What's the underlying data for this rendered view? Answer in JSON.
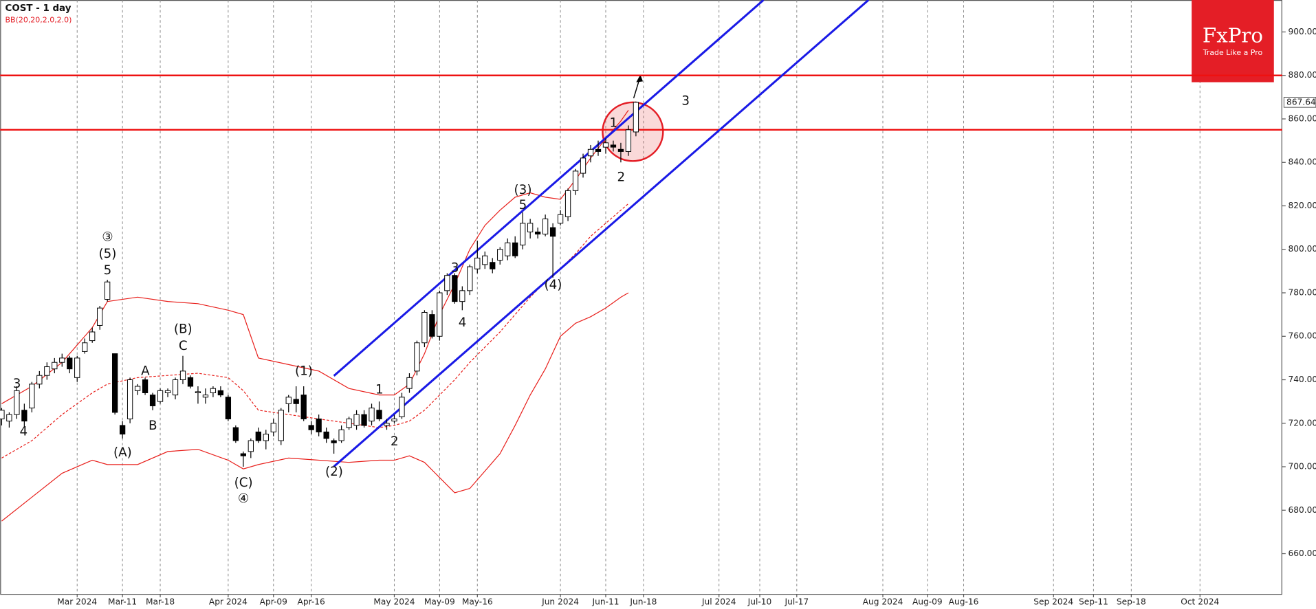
{
  "chart_data": {
    "type": "candlestick",
    "title": "COST - 1 day",
    "subtitle": "BB(20,20,2.0,2.0)",
    "logo": {
      "name": "FxPro",
      "tagline": "Trade Like a Pro"
    },
    "x": [
      -10,
      -9,
      -8,
      -7,
      -6,
      -5,
      -4,
      -3,
      -2,
      -1,
      0,
      1,
      2,
      3,
      4,
      5,
      6,
      7,
      8,
      9,
      10,
      11,
      12,
      13,
      14,
      15,
      16,
      17,
      18,
      19,
      20,
      21,
      22,
      23,
      24,
      25,
      26,
      27,
      28,
      29,
      30,
      31,
      32,
      33,
      34,
      35,
      36,
      37,
      38,
      39,
      40,
      41,
      42,
      43,
      44,
      45,
      46,
      47,
      48,
      49,
      50,
      51,
      52,
      53,
      54,
      55,
      56,
      57,
      58,
      59,
      60,
      61,
      62,
      63,
      64,
      65,
      66,
      67,
      68,
      69,
      70,
      71,
      72,
      73,
      74
    ],
    "open": [
      722,
      721,
      724,
      726,
      727,
      738,
      742,
      745,
      748,
      750,
      741,
      753,
      758,
      765,
      777,
      752,
      719,
      722,
      735,
      740,
      733,
      730,
      734,
      733,
      740,
      741,
      734,
      732,
      734,
      735,
      732,
      718,
      706,
      707,
      716,
      712,
      716,
      712,
      729,
      731,
      733,
      719,
      722,
      716,
      712,
      712,
      718,
      719,
      724,
      721,
      726,
      719,
      721,
      723,
      736,
      744,
      757,
      770,
      760,
      781,
      788,
      776,
      781,
      791,
      793,
      794,
      795,
      797,
      803,
      802,
      808,
      808,
      807,
      810,
      812,
      815,
      827,
      835,
      843,
      846,
      847,
      848,
      846,
      845,
      854
    ],
    "high": [
      727,
      725,
      737,
      729,
      739,
      744,
      748,
      750,
      752,
      751,
      751,
      759,
      764,
      774,
      786,
      752,
      721,
      741,
      738,
      741,
      734,
      736,
      736,
      741,
      751,
      742,
      737,
      736,
      737,
      737,
      733,
      719,
      707,
      713,
      718,
      717,
      722,
      727,
      733,
      737,
      737,
      721,
      724,
      718,
      713,
      719,
      723,
      726,
      726,
      729,
      730,
      722,
      724,
      734,
      743,
      758,
      772,
      772,
      781,
      789,
      789,
      783,
      793,
      804,
      799,
      796,
      801,
      805,
      806,
      817,
      814,
      810,
      816,
      812,
      818,
      828,
      837,
      844,
      848,
      850,
      851,
      850,
      849,
      857,
      868
    ],
    "low": [
      719,
      718,
      722,
      718,
      725,
      736,
      740,
      743,
      746,
      743,
      739,
      752,
      757,
      763,
      776,
      724,
      713,
      720,
      733,
      733,
      726,
      729,
      732,
      731,
      738,
      736,
      729,
      729,
      732,
      732,
      721,
      711,
      700,
      704,
      711,
      708,
      714,
      710,
      725,
      725,
      721,
      715,
      714,
      711,
      706,
      711,
      717,
      717,
      718,
      719,
      721,
      717,
      720,
      722,
      734,
      742,
      755,
      759,
      758,
      779,
      775,
      772,
      779,
      789,
      791,
      789,
      793,
      795,
      796,
      800,
      805,
      805,
      806,
      787,
      811,
      813,
      825,
      833,
      840,
      843,
      844,
      845,
      840,
      843,
      852
    ],
    "close": [
      726,
      724,
      735,
      721,
      738,
      742,
      746,
      748,
      750,
      745,
      750,
      757,
      762,
      773,
      785,
      725,
      715,
      740,
      737,
      734,
      728,
      735,
      735,
      740,
      744,
      737,
      734.5,
      733,
      736,
      733,
      722,
      712,
      705,
      712,
      712,
      715,
      720,
      726,
      732,
      729,
      722,
      717,
      716,
      713,
      711,
      717,
      722,
      724,
      719,
      727,
      722,
      720,
      722,
      732,
      741,
      757,
      771,
      760,
      780,
      788,
      776,
      781,
      792,
      796,
      797,
      791,
      800,
      803,
      797,
      812,
      812,
      807,
      814,
      806,
      816,
      827,
      836,
      842,
      846,
      845,
      849,
      847,
      845,
      855,
      867.64
    ],
    "up_color": "#ffffff",
    "down_color": "#000000",
    "bands": [
      {
        "color": "#e8201c",
        "dashed": false,
        "x": [
          -10,
          -6,
          -2,
          2,
          4,
          8,
          12,
          16,
          20,
          22,
          24,
          28,
          32,
          36,
          40,
          42,
          44,
          46,
          48,
          50,
          52,
          54,
          56,
          58,
          60,
          62,
          64,
          66,
          68,
          70,
          72,
          73
        ],
        "values": [
          729,
          737,
          748,
          764,
          776,
          778,
          776,
          775,
          772,
          770,
          750,
          747,
          744,
          736,
          733,
          733,
          738,
          752,
          770,
          784,
          800,
          811,
          818,
          824,
          826,
          824,
          823,
          832,
          842,
          851,
          859,
          864
        ]
      },
      {
        "color": "#e8201c",
        "dashed": true,
        "x": [
          -10,
          -6,
          -2,
          2,
          4,
          8,
          12,
          16,
          20,
          22,
          24,
          28,
          32,
          36,
          40,
          42,
          44,
          46,
          48,
          50,
          52,
          54,
          56,
          58,
          60,
          62,
          64,
          66,
          68,
          70,
          72,
          73
        ],
        "values": [
          704,
          712,
          724,
          734,
          738,
          741,
          742,
          743,
          741,
          735,
          726,
          724,
          722,
          720,
          718,
          719,
          721,
          726,
          733,
          740,
          748,
          755,
          762,
          770,
          778,
          785,
          791,
          798,
          806,
          812,
          818,
          821
        ]
      },
      {
        "color": "#e8201c",
        "dashed": false,
        "x": [
          -10,
          -6,
          -2,
          2,
          4,
          8,
          12,
          16,
          20,
          22,
          24,
          28,
          32,
          36,
          40,
          42,
          44,
          46,
          48,
          50,
          52,
          54,
          56,
          58,
          60,
          62,
          64,
          66,
          68,
          70,
          72,
          73
        ],
        "values": [
          675,
          686,
          697,
          703,
          701,
          701,
          707,
          708,
          703,
          699,
          701,
          704,
          703,
          702,
          703,
          703,
          705,
          702,
          695,
          688,
          690,
          698,
          706,
          719,
          733,
          745,
          760,
          766,
          769,
          773,
          778,
          780
        ]
      }
    ],
    "hlines": [
      880,
      855
    ],
    "hline_color": "#ee1111",
    "channel": [
      {
        "x": [
          34,
          90.9
        ],
        "y": [
          741.8,
          914.7
        ]
      },
      {
        "x": [
          34,
          104.8
        ],
        "y": [
          700.1,
          914.7
        ]
      }
    ],
    "channel_color": "#1a1ae6",
    "annotations": [
      "3",
      "4",
      "③",
      "(5)",
      "5",
      "A",
      "(A)",
      "B",
      "(B)",
      "C",
      "(C)",
      "④",
      "(1)",
      "(2)",
      "1",
      "2",
      "3",
      "4",
      "(3)",
      "5",
      "(4)",
      "1",
      "2",
      "3"
    ],
    "xlim": [
      -10.2,
      159.6
    ],
    "xticks": [
      {
        "value": 0,
        "label": "Mar 2024"
      },
      {
        "value": 6,
        "label": "Mar-11"
      },
      {
        "value": 11,
        "label": "Mar-18"
      },
      {
        "value": 20,
        "label": "Apr 2024"
      },
      {
        "value": 26,
        "label": "Apr-09"
      },
      {
        "value": 31,
        "label": "Apr-16"
      },
      {
        "value": 42,
        "label": "May 2024"
      },
      {
        "value": 48,
        "label": "May-09"
      },
      {
        "value": 53,
        "label": "May-16"
      },
      {
        "value": 64,
        "label": "Jun 2024"
      },
      {
        "value": 70,
        "label": "Jun-11"
      },
      {
        "value": 75,
        "label": "Jun-18"
      },
      {
        "value": 85,
        "label": "Jul 2024"
      },
      {
        "value": 90.4,
        "label": "Jul-10"
      },
      {
        "value": 95.3,
        "label": "Jul-17"
      },
      {
        "value": 106.7,
        "label": "Aug 2024"
      },
      {
        "value": 112.6,
        "label": "Aug-09"
      },
      {
        "value": 117.4,
        "label": "Aug-16"
      },
      {
        "value": 129.3,
        "label": "Sep 2024"
      },
      {
        "value": 134.6,
        "label": "Sep-11"
      },
      {
        "value": 139.6,
        "label": "Sep-18"
      },
      {
        "value": 148.7,
        "label": "Oct 2024"
      }
    ],
    "ylim": [
      641.5,
      914.7
    ],
    "yticks": [
      {
        "value": 900,
        "label": "900.00"
      },
      {
        "value": 880,
        "label": "880.00"
      },
      {
        "value": 860,
        "label": "860.00"
      },
      {
        "value": 840,
        "label": "840.00"
      },
      {
        "value": 820,
        "label": "820.00"
      },
      {
        "value": 800,
        "label": "800.00"
      },
      {
        "value": 780,
        "label": "780.00"
      },
      {
        "value": 760,
        "label": "760.00"
      },
      {
        "value": 740,
        "label": "740.00"
      },
      {
        "value": 720,
        "label": "720.00"
      },
      {
        "value": 700,
        "label": "700.00"
      },
      {
        "value": 680,
        "label": "680.00"
      },
      {
        "value": 660,
        "label": "660.00"
      }
    ],
    "grid": true
  }
}
